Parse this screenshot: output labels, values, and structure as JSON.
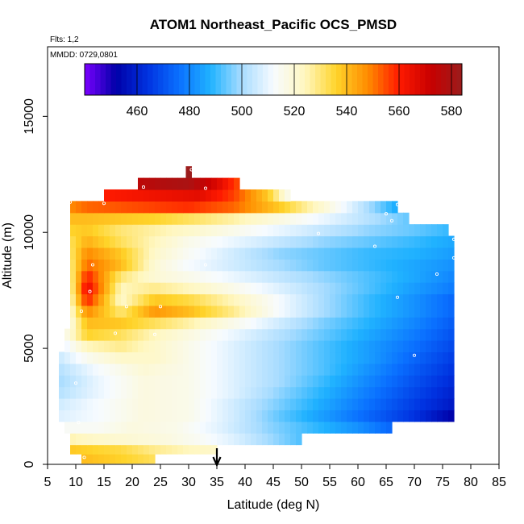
{
  "chart_data": {
    "type": "heatmap",
    "title": "ATOM1 Northeast_Pacific OCS_PMSD",
    "subtitle_flights": "Flts: 1,2",
    "subtitle_dates": "MMDD: 0729,0801",
    "xlabel": "Latitude (deg N)",
    "ylabel": "Altitude (m)",
    "xlim": [
      5,
      85
    ],
    "ylim": [
      0,
      18000
    ],
    "x_ticks": [
      5,
      10,
      15,
      20,
      25,
      30,
      35,
      40,
      45,
      50,
      55,
      60,
      65,
      70,
      75,
      80,
      85
    ],
    "y_ticks": [
      0,
      5000,
      10000,
      15000
    ],
    "colorbar": {
      "range": [
        440,
        584
      ],
      "ticks": [
        460,
        480,
        500,
        520,
        540,
        560,
        580
      ],
      "placement": "top-inside",
      "colors": [
        "#7b00ff",
        "#0000a8",
        "#0032e0",
        "#0a70ff",
        "#20b2ff",
        "#a8dcff",
        "#f7fbff",
        "#fff7c0",
        "#ffd42a",
        "#ff8c00",
        "#ff1a00",
        "#c80000",
        "#9b1c1c"
      ]
    },
    "arrow_marker_lat": 35,
    "series": [
      {
        "lat": [
          11,
          15,
          20,
          24
        ],
        "alt": 300,
        "values": [
          540,
          538,
          535,
          532
        ]
      },
      {
        "lat": [
          9,
          13,
          18,
          24,
          30,
          35
        ],
        "alt": 700,
        "values": [
          538,
          536,
          534,
          528,
          524,
          522
        ]
      },
      {
        "lat": [
          9,
          14,
          20,
          26,
          32,
          38,
          44,
          50
        ],
        "alt": 1100,
        "values": [
          525,
          522,
          520,
          518,
          514,
          508,
          500,
          492
        ]
      },
      {
        "lat": [
          8,
          14,
          20,
          28,
          36,
          44,
          52,
          60,
          66
        ],
        "alt": 1600,
        "values": [
          514,
          514,
          518,
          516,
          508,
          498,
          490,
          482,
          474
        ]
      },
      {
        "lat": [
          7,
          14,
          22,
          30,
          38,
          46,
          54,
          62,
          70,
          77
        ],
        "alt": 2100,
        "values": [
          508,
          512,
          518,
          516,
          506,
          494,
          484,
          474,
          464,
          452
        ]
      },
      {
        "lat": [
          7,
          14,
          22,
          30,
          38,
          46,
          54,
          62,
          70,
          77
        ],
        "alt": 2600,
        "values": [
          506,
          512,
          518,
          516,
          506,
          496,
          486,
          476,
          466,
          458
        ]
      },
      {
        "lat": [
          7,
          14,
          22,
          30,
          38,
          46,
          54,
          62,
          70,
          77
        ],
        "alt": 3100,
        "values": [
          502,
          510,
          518,
          516,
          508,
          498,
          488,
          478,
          468,
          460
        ]
      },
      {
        "lat": [
          7,
          14,
          22,
          30,
          38,
          46,
          54,
          62,
          70,
          77
        ],
        "alt": 3600,
        "values": [
          500,
          510,
          518,
          516,
          508,
          500,
          490,
          480,
          470,
          462
        ]
      },
      {
        "lat": [
          7,
          14,
          22,
          30,
          38,
          46,
          54,
          62,
          70,
          77
        ],
        "alt": 4100,
        "values": [
          502,
          512,
          520,
          516,
          508,
          500,
          492,
          482,
          472,
          464
        ]
      },
      {
        "lat": [
          7,
          12,
          18,
          24,
          30,
          38,
          46,
          54,
          62,
          70,
          77
        ],
        "alt": 4600,
        "values": [
          505,
          515,
          522,
          522,
          516,
          508,
          500,
          492,
          484,
          474,
          466
        ]
      },
      {
        "lat": [
          8,
          12,
          18,
          24,
          30,
          38,
          46,
          54,
          62,
          70,
          77
        ],
        "alt": 5100,
        "values": [
          510,
          524,
          528,
          522,
          516,
          508,
          500,
          492,
          484,
          476,
          468
        ]
      },
      {
        "lat": [
          8,
          12,
          18,
          24,
          30,
          38,
          46,
          54,
          62,
          70,
          77
        ],
        "alt": 5600,
        "values": [
          515,
          536,
          532,
          524,
          518,
          510,
          502,
          494,
          486,
          478,
          470
        ]
      },
      {
        "lat": [
          9,
          12,
          18,
          24,
          30,
          38,
          46,
          54,
          62,
          70,
          77
        ],
        "alt": 6100,
        "values": [
          518,
          540,
          538,
          532,
          526,
          516,
          506,
          496,
          488,
          480,
          472
        ]
      },
      {
        "lat": [
          9,
          12,
          18,
          24,
          30,
          38,
          46,
          54,
          62,
          70,
          77
        ],
        "alt": 6600,
        "values": [
          520,
          548,
          530,
          546,
          540,
          528,
          512,
          500,
          490,
          482,
          474
        ]
      },
      {
        "lat": [
          9,
          12,
          18,
          24,
          30,
          38,
          46,
          54,
          62,
          70,
          77
        ],
        "alt": 7100,
        "values": [
          522,
          560,
          522,
          538,
          534,
          524,
          512,
          500,
          490,
          482,
          474
        ]
      },
      {
        "lat": [
          9,
          12,
          18,
          24,
          30,
          38,
          46,
          54,
          62,
          70,
          77
        ],
        "alt": 7600,
        "values": [
          524,
          566,
          524,
          528,
          524,
          516,
          508,
          500,
          492,
          484,
          478
        ]
      },
      {
        "lat": [
          9,
          12,
          18,
          24,
          30,
          38,
          46,
          54,
          62,
          70,
          77
        ],
        "alt": 8100,
        "values": [
          526,
          560,
          530,
          520,
          516,
          510,
          504,
          498,
          492,
          486,
          480
        ]
      },
      {
        "lat": [
          9,
          12,
          18,
          24,
          30,
          38,
          46,
          54,
          62,
          70,
          77
        ],
        "alt": 8600,
        "values": [
          528,
          552,
          540,
          520,
          512,
          506,
          500,
          494,
          490,
          486,
          482
        ]
      },
      {
        "lat": [
          9,
          12,
          18,
          24,
          30,
          38,
          46,
          54,
          62,
          70,
          77
        ],
        "alt": 9100,
        "values": [
          530,
          548,
          538,
          522,
          514,
          506,
          498,
          494,
          490,
          488,
          484
        ]
      },
      {
        "lat": [
          9,
          12,
          18,
          24,
          30,
          38,
          46,
          54,
          62,
          70,
          77
        ],
        "alt": 9600,
        "values": [
          532,
          542,
          532,
          524,
          516,
          510,
          504,
          498,
          494,
          490,
          486
        ]
      },
      {
        "lat": [
          9,
          12,
          18,
          24,
          30,
          38,
          46,
          54,
          62,
          70,
          76
        ],
        "alt": 10100,
        "values": [
          536,
          538,
          530,
          526,
          522,
          516,
          510,
          504,
          498,
          494,
          490
        ]
      },
      {
        "lat": [
          9,
          12,
          18,
          24,
          30,
          38,
          46,
          54,
          62,
          69
        ],
        "alt": 10600,
        "values": [
          540,
          540,
          538,
          536,
          532,
          526,
          518,
          510,
          502,
          494
        ]
      },
      {
        "lat": [
          9,
          12,
          18,
          24,
          30,
          38,
          46,
          54,
          62,
          67
        ],
        "alt": 11100,
        "values": [
          548,
          552,
          554,
          556,
          558,
          552,
          538,
          520,
          500,
          486
        ]
      },
      {
        "lat": [
          15,
          20,
          26,
          32,
          38,
          44,
          48
        ],
        "alt": 11600,
        "values": [
          560,
          562,
          564,
          566,
          556,
          538,
          514
        ]
      },
      {
        "lat": [
          21,
          25,
          30,
          35,
          39
        ],
        "alt": 12100,
        "values": [
          575,
          578,
          580,
          568,
          554
        ]
      },
      {
        "lat": [
          30
        ],
        "alt": 12600,
        "values": [
          584
        ]
      }
    ],
    "sample_points": [
      {
        "lat": 30.5,
        "alt": 12700
      },
      {
        "lat": 33,
        "alt": 11900
      },
      {
        "lat": 22,
        "alt": 11950
      },
      {
        "lat": 9,
        "alt": 11300
      },
      {
        "lat": 15,
        "alt": 11250
      },
      {
        "lat": 67,
        "alt": 11200
      },
      {
        "lat": 65,
        "alt": 10800
      },
      {
        "lat": 66,
        "alt": 10500
      },
      {
        "lat": 53,
        "alt": 9950
      },
      {
        "lat": 77,
        "alt": 9700
      },
      {
        "lat": 63,
        "alt": 9400
      },
      {
        "lat": 77,
        "alt": 8900
      },
      {
        "lat": 33,
        "alt": 8600
      },
      {
        "lat": 13,
        "alt": 8600
      },
      {
        "lat": 74,
        "alt": 8200
      },
      {
        "lat": 12.5,
        "alt": 7450
      },
      {
        "lat": 77.5,
        "alt": 7600
      },
      {
        "lat": 67,
        "alt": 7200
      },
      {
        "lat": 19,
        "alt": 6800
      },
      {
        "lat": 25,
        "alt": 6800
      },
      {
        "lat": 11,
        "alt": 6600
      },
      {
        "lat": 17,
        "alt": 5650
      },
      {
        "lat": 24,
        "alt": 5600
      },
      {
        "lat": 70,
        "alt": 4700
      },
      {
        "lat": 6,
        "alt": 4300
      },
      {
        "lat": 10,
        "alt": 3500
      },
      {
        "lat": 78,
        "alt": 2200
      },
      {
        "lat": 10.5,
        "alt": 1800
      },
      {
        "lat": 11.5,
        "alt": 300
      }
    ]
  }
}
